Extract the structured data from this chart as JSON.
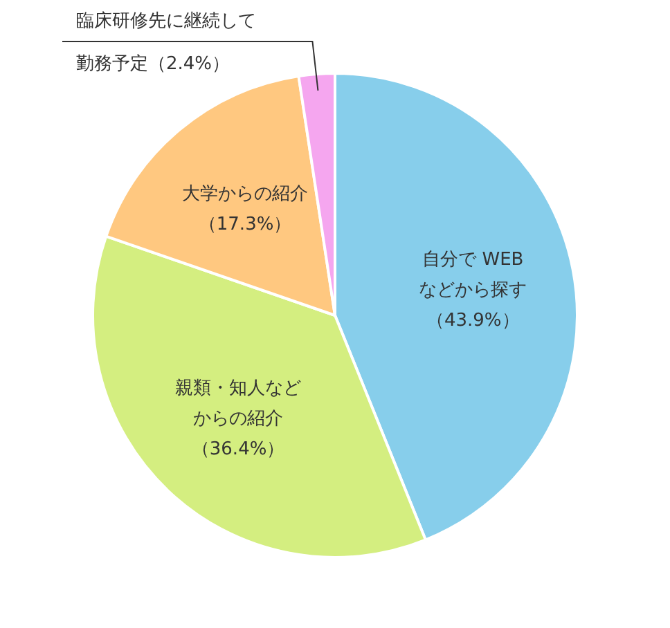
{
  "chart_data": {
    "type": "pie",
    "categories": [
      "自分で WEBなどから探す",
      "親類・知人などからの紹介",
      "大学からの紹介",
      "臨床研修先に継続して勤務予定"
    ],
    "values": [
      43.9,
      36.4,
      17.3,
      2.4
    ],
    "colors": [
      "#87ceeb",
      "#d4ee80",
      "#ffc880",
      "#f5a6ef"
    ],
    "value_labels": [
      "（43.9%）",
      "（36.4%）",
      "（17.3%）",
      "（2.4%）"
    ]
  }
}
